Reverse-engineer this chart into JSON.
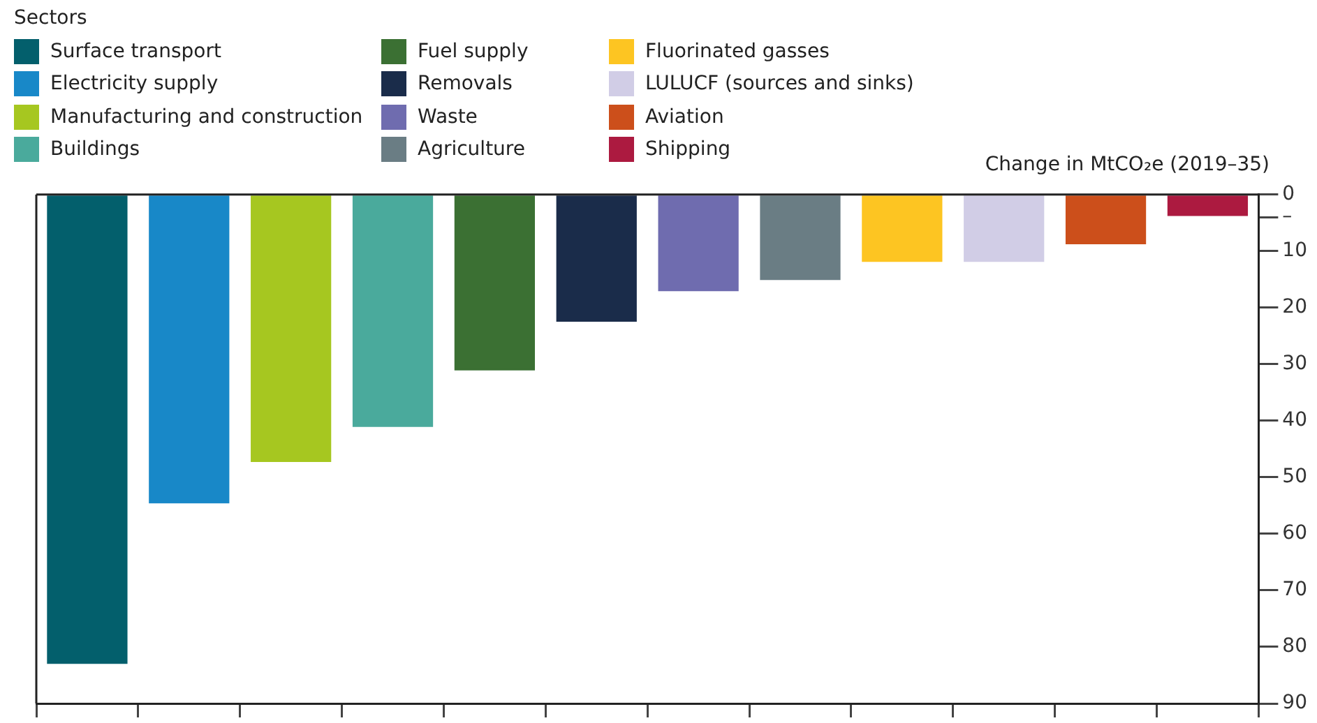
{
  "chart_data": {
    "type": "bar",
    "legend_title": "Sectors",
    "ylabel": "Change in MtCO₂e (2019–35)",
    "categories": [
      null,
      null,
      null,
      null,
      null,
      null,
      null,
      null,
      null,
      null,
      null,
      null
    ],
    "series": [
      {
        "name": "Surface transport",
        "color": "#035f6c",
        "values": [
          83,
          null,
          null,
          null,
          null,
          null,
          null,
          null,
          null,
          null,
          null,
          null
        ]
      },
      {
        "name": "Electricity supply",
        "color": "#1888c8",
        "values": [
          null,
          54.6,
          null,
          null,
          null,
          null,
          null,
          null,
          null,
          null,
          null,
          null
        ]
      },
      {
        "name": "Manufacturing and construction",
        "color": "#a6c720",
        "values": [
          null,
          null,
          47.3,
          null,
          null,
          null,
          null,
          null,
          null,
          null,
          null,
          null
        ]
      },
      {
        "name": "Buildings",
        "color": "#4aaa9c",
        "values": [
          null,
          null,
          null,
          41.1,
          null,
          null,
          null,
          null,
          null,
          null,
          null,
          null
        ]
      },
      {
        "name": "Fuel supply",
        "color": "#3b7033",
        "values": [
          null,
          null,
          null,
          null,
          31.1,
          null,
          null,
          null,
          null,
          null,
          null,
          null
        ]
      },
      {
        "name": "Removals",
        "color": "#1a2c4a",
        "values": [
          null,
          null,
          null,
          null,
          null,
          22.5,
          null,
          null,
          null,
          null,
          null,
          null
        ]
      },
      {
        "name": "Waste",
        "color": "#6f6caf",
        "values": [
          null,
          null,
          null,
          null,
          null,
          null,
          17.1,
          null,
          null,
          null,
          null,
          null
        ]
      },
      {
        "name": "Agriculture",
        "color": "#6a7d84",
        "values": [
          null,
          null,
          null,
          null,
          null,
          null,
          null,
          15.1,
          null,
          null,
          null,
          null
        ]
      },
      {
        "name": "Fluorinated gasses",
        "color": "#fdc522",
        "values": [
          null,
          null,
          null,
          null,
          null,
          null,
          null,
          null,
          11.9,
          null,
          null,
          null
        ]
      },
      {
        "name": "LULUCF (sources and sinks)",
        "color": "#d1cde6",
        "values": [
          null,
          null,
          null,
          null,
          null,
          null,
          null,
          null,
          null,
          11.9,
          null,
          null
        ]
      },
      {
        "name": "Aviation",
        "color": "#cc4f1b",
        "values": [
          null,
          null,
          null,
          null,
          null,
          null,
          null,
          null,
          null,
          null,
          8.8,
          null
        ]
      },
      {
        "name": "Shipping",
        "color": "#ac1a40",
        "values": [
          null,
          null,
          null,
          null,
          null,
          null,
          null,
          null,
          null,
          null,
          null,
          3.8
        ]
      }
    ],
    "ylim": [
      90,
      0
    ],
    "yticks": [
      0,
      {
        "value": 4,
        "label": "–"
      },
      10,
      20,
      30,
      40,
      50,
      60,
      70,
      80,
      90
    ],
    "legend": "top left",
    "grid": false
  }
}
